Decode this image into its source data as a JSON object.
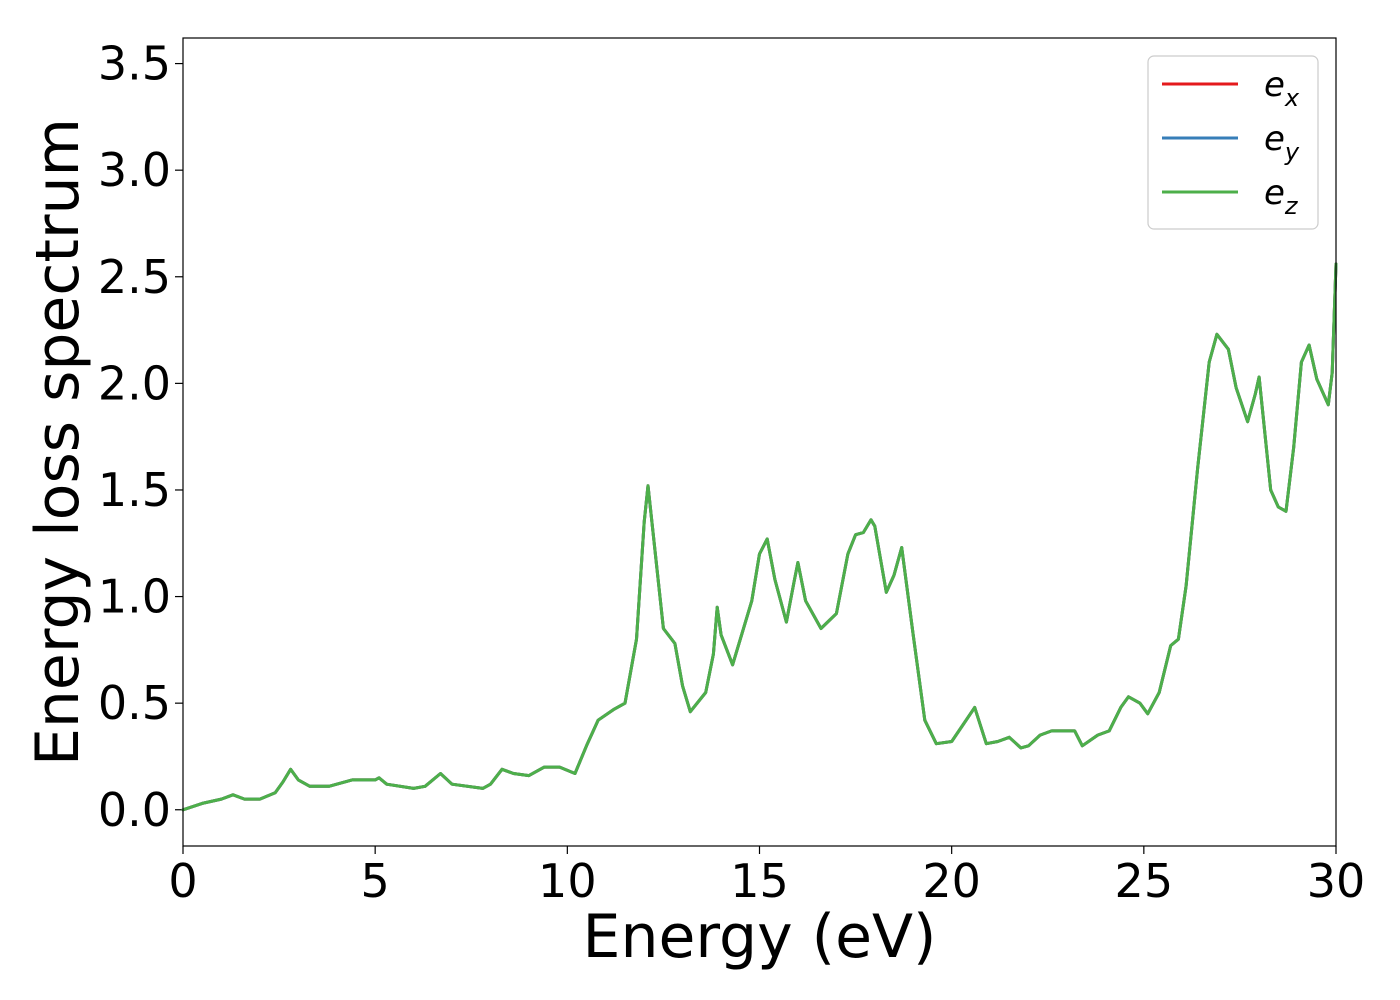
{
  "chart_data": {
    "type": "line",
    "xlabel": "Energy (eV)",
    "ylabel": "Energy loss spectrum",
    "xlim": [
      0,
      30
    ],
    "ylim": [
      -0.17,
      3.62
    ],
    "xticks": [
      0,
      5,
      10,
      15,
      20,
      25,
      30
    ],
    "yticks": [
      0.0,
      0.5,
      1.0,
      1.5,
      2.0,
      2.5,
      3.0,
      3.5
    ],
    "xtick_labels": [
      "0",
      "5",
      "10",
      "15",
      "20",
      "25",
      "30"
    ],
    "ytick_labels": [
      "0.0",
      "0.5",
      "1.0",
      "1.5",
      "2.0",
      "2.5",
      "3.0",
      "3.5"
    ],
    "grid": false,
    "legend_position": "top-right",
    "x": [
      0,
      0.5,
      1.0,
      1.3,
      1.6,
      2.0,
      2.4,
      2.6,
      2.8,
      3.0,
      3.3,
      3.8,
      4.4,
      5.0,
      5.1,
      5.3,
      6.0,
      6.3,
      6.7,
      7.0,
      7.8,
      8.0,
      8.3,
      8.6,
      9.0,
      9.4,
      9.8,
      10.2,
      10.5,
      10.8,
      11.2,
      11.5,
      11.8,
      12.0,
      12.1,
      12.2,
      12.5,
      12.8,
      13.0,
      13.2,
      13.6,
      13.8,
      13.9,
      14.0,
      14.3,
      14.5,
      14.8,
      15.0,
      15.2,
      15.4,
      15.7,
      15.9,
      16.0,
      16.2,
      16.6,
      17.0,
      17.3,
      17.5,
      17.7,
      17.9,
      18.0,
      18.3,
      18.5,
      18.7,
      19.0,
      19.3,
      19.6,
      20.0,
      20.3,
      20.6,
      20.9,
      21.2,
      21.5,
      21.8,
      22.0,
      22.3,
      22.6,
      22.9,
      23.2,
      23.4,
      23.8,
      24.1,
      24.4,
      24.6,
      24.9,
      25.1,
      25.4,
      25.7,
      25.9,
      26.1,
      26.4,
      26.7,
      26.9,
      27.2,
      27.4,
      27.7,
      27.9,
      28.0,
      28.3,
      28.5,
      28.7,
      28.9,
      29.1,
      29.3,
      29.5,
      29.8,
      29.9,
      30.0
    ],
    "series": [
      {
        "name": "e_x",
        "label": "e",
        "sub": "x",
        "color": "#e41a1c",
        "values": [
          0.0,
          0.03,
          0.05,
          0.07,
          0.05,
          0.05,
          0.08,
          0.13,
          0.19,
          0.14,
          0.11,
          0.11,
          0.14,
          0.14,
          0.15,
          0.12,
          0.1,
          0.11,
          0.17,
          0.12,
          0.1,
          0.12,
          0.19,
          0.17,
          0.16,
          0.2,
          0.2,
          0.17,
          0.3,
          0.42,
          0.47,
          0.5,
          0.8,
          1.35,
          1.52,
          1.35,
          0.85,
          0.78,
          0.58,
          0.46,
          0.55,
          0.73,
          0.95,
          0.82,
          0.68,
          0.8,
          0.98,
          1.2,
          1.27,
          1.08,
          0.88,
          1.07,
          1.16,
          0.98,
          0.85,
          0.92,
          1.2,
          1.29,
          1.3,
          1.36,
          1.33,
          1.02,
          1.1,
          1.23,
          0.82,
          0.42,
          0.31,
          0.32,
          0.4,
          0.48,
          0.31,
          0.32,
          0.34,
          0.29,
          0.3,
          0.35,
          0.37,
          0.37,
          0.37,
          0.3,
          0.35,
          0.37,
          0.48,
          0.53,
          0.5,
          0.45,
          0.55,
          0.77,
          0.8,
          1.05,
          1.6,
          2.1,
          2.23,
          2.16,
          1.98,
          1.82,
          1.95,
          2.03,
          1.5,
          1.42,
          1.4,
          1.7,
          2.1,
          2.18,
          2.02,
          1.9,
          2.05,
          2.56
        ]
      },
      {
        "name": "e_y",
        "label": "e",
        "sub": "y",
        "color": "#377eb8",
        "values": [
          0.0,
          0.03,
          0.05,
          0.07,
          0.05,
          0.05,
          0.08,
          0.13,
          0.19,
          0.14,
          0.11,
          0.11,
          0.14,
          0.14,
          0.15,
          0.12,
          0.1,
          0.11,
          0.17,
          0.12,
          0.1,
          0.12,
          0.19,
          0.17,
          0.16,
          0.2,
          0.2,
          0.17,
          0.3,
          0.42,
          0.47,
          0.5,
          0.8,
          1.35,
          1.52,
          1.35,
          0.85,
          0.78,
          0.58,
          0.46,
          0.55,
          0.73,
          0.95,
          0.82,
          0.68,
          0.8,
          0.98,
          1.2,
          1.27,
          1.08,
          0.88,
          1.07,
          1.16,
          0.98,
          0.85,
          0.92,
          1.2,
          1.29,
          1.3,
          1.36,
          1.33,
          1.02,
          1.1,
          1.23,
          0.82,
          0.42,
          0.31,
          0.32,
          0.4,
          0.48,
          0.31,
          0.32,
          0.34,
          0.29,
          0.3,
          0.35,
          0.37,
          0.37,
          0.37,
          0.3,
          0.35,
          0.37,
          0.48,
          0.53,
          0.5,
          0.45,
          0.55,
          0.77,
          0.8,
          1.05,
          1.6,
          2.1,
          2.23,
          2.16,
          1.98,
          1.82,
          1.95,
          2.03,
          1.5,
          1.42,
          1.4,
          1.7,
          2.1,
          2.18,
          2.02,
          1.9,
          2.05,
          2.56
        ]
      },
      {
        "name": "e_z",
        "label": "e",
        "sub": "z",
        "color": "#4daf4a",
        "values": [
          0.0,
          0.03,
          0.05,
          0.07,
          0.05,
          0.05,
          0.08,
          0.13,
          0.19,
          0.14,
          0.11,
          0.11,
          0.14,
          0.14,
          0.15,
          0.12,
          0.1,
          0.11,
          0.17,
          0.12,
          0.1,
          0.12,
          0.19,
          0.17,
          0.16,
          0.2,
          0.2,
          0.17,
          0.3,
          0.42,
          0.47,
          0.5,
          0.8,
          1.35,
          1.52,
          1.35,
          0.85,
          0.78,
          0.58,
          0.46,
          0.55,
          0.73,
          0.95,
          0.82,
          0.68,
          0.8,
          0.98,
          1.2,
          1.27,
          1.08,
          0.88,
          1.07,
          1.16,
          0.98,
          0.85,
          0.92,
          1.2,
          1.29,
          1.3,
          1.36,
          1.33,
          1.02,
          1.1,
          1.23,
          0.82,
          0.42,
          0.31,
          0.32,
          0.4,
          0.48,
          0.31,
          0.32,
          0.34,
          0.29,
          0.3,
          0.35,
          0.37,
          0.37,
          0.37,
          0.3,
          0.35,
          0.37,
          0.48,
          0.53,
          0.5,
          0.45,
          0.55,
          0.77,
          0.8,
          1.05,
          1.6,
          2.1,
          2.23,
          2.16,
          1.98,
          1.82,
          1.95,
          2.03,
          1.5,
          1.42,
          1.4,
          1.7,
          2.1,
          2.18,
          2.02,
          1.9,
          2.05,
          2.56
        ]
      }
    ]
  }
}
